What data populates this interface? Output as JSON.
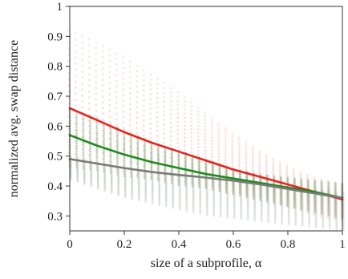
{
  "chart_data": {
    "type": "scatter",
    "title": "",
    "xlabel": "size of a subprofile, α",
    "ylabel": "normalized avg. swap distance",
    "xlim": [
      0,
      1
    ],
    "ylim": [
      0.25,
      1.0
    ],
    "xticks": [
      "0",
      "0.2",
      "0.4",
      "0.6",
      "0.8",
      "1"
    ],
    "yticks": [
      "0.3",
      "0.4",
      "0.5",
      "0.6",
      "0.7",
      "0.8",
      "0.9",
      "1"
    ],
    "xtick_values": [
      0,
      0.2,
      0.4,
      0.6,
      0.8,
      1
    ],
    "ytick_values": [
      0.3,
      0.4,
      0.5,
      0.6,
      0.7,
      0.8,
      0.9,
      1.0
    ],
    "grid": false,
    "legend": "none",
    "scatter_series": [
      {
        "color": "#e8a0a0",
        "opacity": 0.35,
        "x": [
          0,
          0.1,
          0.2,
          0.3,
          0.4,
          0.5,
          0.6,
          0.7,
          0.8,
          0.9,
          1.0
        ],
        "y_min": [
          0.48,
          0.47,
          0.44,
          0.42,
          0.41,
          0.4,
          0.38,
          0.36,
          0.33,
          0.3,
          0.28
        ],
        "y_max": [
          0.93,
          0.89,
          0.84,
          0.78,
          0.72,
          0.65,
          0.58,
          0.52,
          0.47,
          0.43,
          0.41
        ]
      },
      {
        "color": "#7a9a60",
        "opacity": 0.5,
        "x": [
          0,
          0.1,
          0.2,
          0.3,
          0.4,
          0.5,
          0.6,
          0.7,
          0.8,
          0.9,
          1.0
        ],
        "y_min": [
          0.46,
          0.45,
          0.43,
          0.42,
          0.4,
          0.39,
          0.37,
          0.35,
          0.33,
          0.31,
          0.29
        ],
        "y_max": [
          0.66,
          0.63,
          0.59,
          0.55,
          0.52,
          0.49,
          0.46,
          0.44,
          0.43,
          0.42,
          0.41
        ]
      },
      {
        "color": "#b0b8b0",
        "opacity": 0.45,
        "x": [
          0,
          0.1,
          0.2,
          0.3,
          0.4,
          0.5,
          0.6,
          0.7,
          0.8,
          0.9,
          1.0
        ],
        "y_min": [
          0.42,
          0.39,
          0.36,
          0.34,
          0.32,
          0.3,
          0.29,
          0.28,
          0.27,
          0.26,
          0.25
        ],
        "y_max": [
          0.5,
          0.48,
          0.46,
          0.45,
          0.44,
          0.43,
          0.42,
          0.41,
          0.4,
          0.39,
          0.38
        ]
      }
    ],
    "series": [
      {
        "color": "#e8231e",
        "x": [
          0,
          0.1,
          0.2,
          0.3,
          0.4,
          0.5,
          0.6,
          0.7,
          0.8,
          0.9,
          1.0
        ],
        "values": [
          0.66,
          0.62,
          0.58,
          0.545,
          0.515,
          0.485,
          0.455,
          0.43,
          0.405,
          0.38,
          0.355
        ]
      },
      {
        "color": "#1f8a1f",
        "x": [
          0,
          0.1,
          0.2,
          0.3,
          0.4,
          0.5,
          0.6,
          0.7,
          0.8,
          0.9,
          1.0
        ],
        "values": [
          0.57,
          0.535,
          0.505,
          0.48,
          0.46,
          0.44,
          0.425,
          0.41,
          0.395,
          0.38,
          0.36
        ]
      },
      {
        "color": "#7a7a7a",
        "x": [
          0,
          0.1,
          0.2,
          0.3,
          0.4,
          0.5,
          0.6,
          0.7,
          0.8,
          0.9,
          1.0
        ],
        "values": [
          0.49,
          0.475,
          0.46,
          0.447,
          0.437,
          0.428,
          0.418,
          0.405,
          0.39,
          0.375,
          0.36
        ]
      }
    ]
  }
}
